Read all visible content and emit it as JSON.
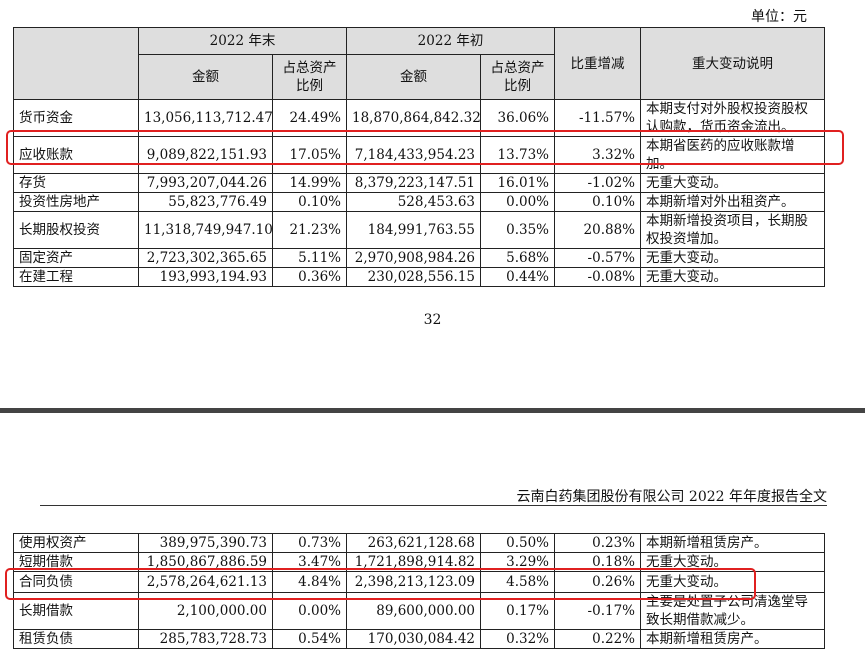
{
  "unit_label": "单位：元",
  "page_number": "32",
  "company_header": "云南白药集团股份有限公司 2022 年年度报告全文",
  "columns": {
    "end_2022": "2022 年末",
    "begin_2022": "2022 年初",
    "amount": "金额",
    "ratio_line1": "占总资产",
    "ratio_line2": "比例",
    "change": "比重增减",
    "note": "重大变动说明"
  },
  "top_rows": [
    {
      "item": "货币资金",
      "amt_end": "13,056,113,712.47",
      "pct_end": "24.49%",
      "amt_begin": "18,870,864,842.32",
      "pct_begin": "36.06%",
      "change": "-11.57%",
      "note": "本期支付对外股权投资股权认购款，货币资金流出。"
    },
    {
      "item": "应收账款",
      "amt_end": "9,089,822,151.93",
      "pct_end": "17.05%",
      "amt_begin": "7,184,433,954.23",
      "pct_begin": "13.73%",
      "change": "3.32%",
      "note": "本期省医药的应收账款增加。"
    },
    {
      "item": "存货",
      "amt_end": "7,993,207,044.26",
      "pct_end": "14.99%",
      "amt_begin": "8,379,223,147.51",
      "pct_begin": "16.01%",
      "change": "-1.02%",
      "note": "无重大变动。"
    },
    {
      "item": "投资性房地产",
      "amt_end": "55,823,776.49",
      "pct_end": "0.10%",
      "amt_begin": "528,453.63",
      "pct_begin": "0.00%",
      "change": "0.10%",
      "note": "本期新增对外出租资产。"
    },
    {
      "item": "长期股权投资",
      "amt_end": "11,318,749,947.10",
      "pct_end": "21.23%",
      "amt_begin": "184,991,763.55",
      "pct_begin": "0.35%",
      "change": "20.88%",
      "note": "本期新增投资项目，长期股权投资增加。"
    },
    {
      "item": "固定资产",
      "amt_end": "2,723,302,365.65",
      "pct_end": "5.11%",
      "amt_begin": "2,970,908,984.26",
      "pct_begin": "5.68%",
      "change": "-0.57%",
      "note": "无重大变动。"
    },
    {
      "item": "在建工程",
      "amt_end": "193,993,194.93",
      "pct_end": "0.36%",
      "amt_begin": "230,028,556.15",
      "pct_begin": "0.44%",
      "change": "-0.08%",
      "note": "无重大变动。"
    }
  ],
  "bottom_rows": [
    {
      "item": "使用权资产",
      "amt_end": "389,975,390.73",
      "pct_end": "0.73%",
      "amt_begin": "263,621,128.68",
      "pct_begin": "0.50%",
      "change": "0.23%",
      "note": "本期新增租赁房产。"
    },
    {
      "item": "短期借款",
      "amt_end": "1,850,867,886.59",
      "pct_end": "3.47%",
      "amt_begin": "1,721,898,914.82",
      "pct_begin": "3.29%",
      "change": "0.18%",
      "note": "无重大变动。"
    },
    {
      "item": "合同负债",
      "amt_end": "2,578,264,621.13",
      "pct_end": "4.84%",
      "amt_begin": "2,398,213,123.09",
      "pct_begin": "4.58%",
      "change": "0.26%",
      "note": "无重大变动。"
    },
    {
      "item": "长期借款",
      "amt_end": "2,100,000.00",
      "pct_end": "0.00%",
      "amt_begin": "89,600,000.00",
      "pct_begin": "0.17%",
      "change": "-0.17%",
      "note": "主要是处置子公司清逸堂导致长期借款减少。"
    },
    {
      "item": "租赁负债",
      "amt_end": "285,783,728.73",
      "pct_end": "0.54%",
      "amt_begin": "170,030,084.42",
      "pct_begin": "0.32%",
      "change": "0.22%",
      "note": "本期新增租赁房产。"
    }
  ],
  "highlight_color": "#e02020"
}
